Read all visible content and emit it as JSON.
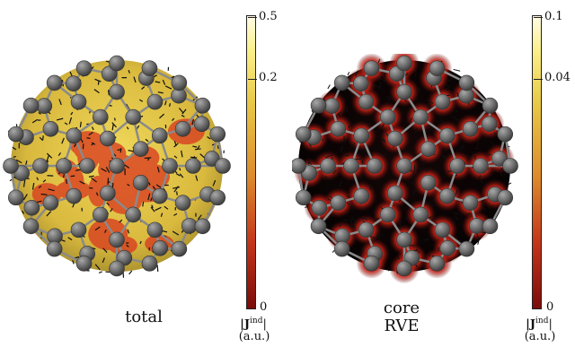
{
  "panels": [
    {
      "id": "left",
      "caption_lines": [
        "total"
      ],
      "colorbar": {
        "ticks": [
          "0.5",
          "0.2",
          "0"
        ],
        "quantity": "|J",
        "superscript": "ind",
        "quantity_close": "|",
        "unit": "(a.u.)"
      },
      "colors": {
        "base": "#e7c84a",
        "hot": "#d8361e",
        "atom": "#6b6b6b"
      }
    },
    {
      "id": "right",
      "caption_lines": [
        "core",
        "RVE"
      ],
      "colorbar": {
        "ticks": [
          "0.1",
          "0.04",
          "0"
        ],
        "quantity": "|J",
        "superscript": "ind",
        "quantity_close": "|",
        "unit": "(a.u.)"
      },
      "colors": {
        "base": "#0a0404",
        "hot": "#e23c1c",
        "atom": "#6b6b6b"
      }
    }
  ]
}
